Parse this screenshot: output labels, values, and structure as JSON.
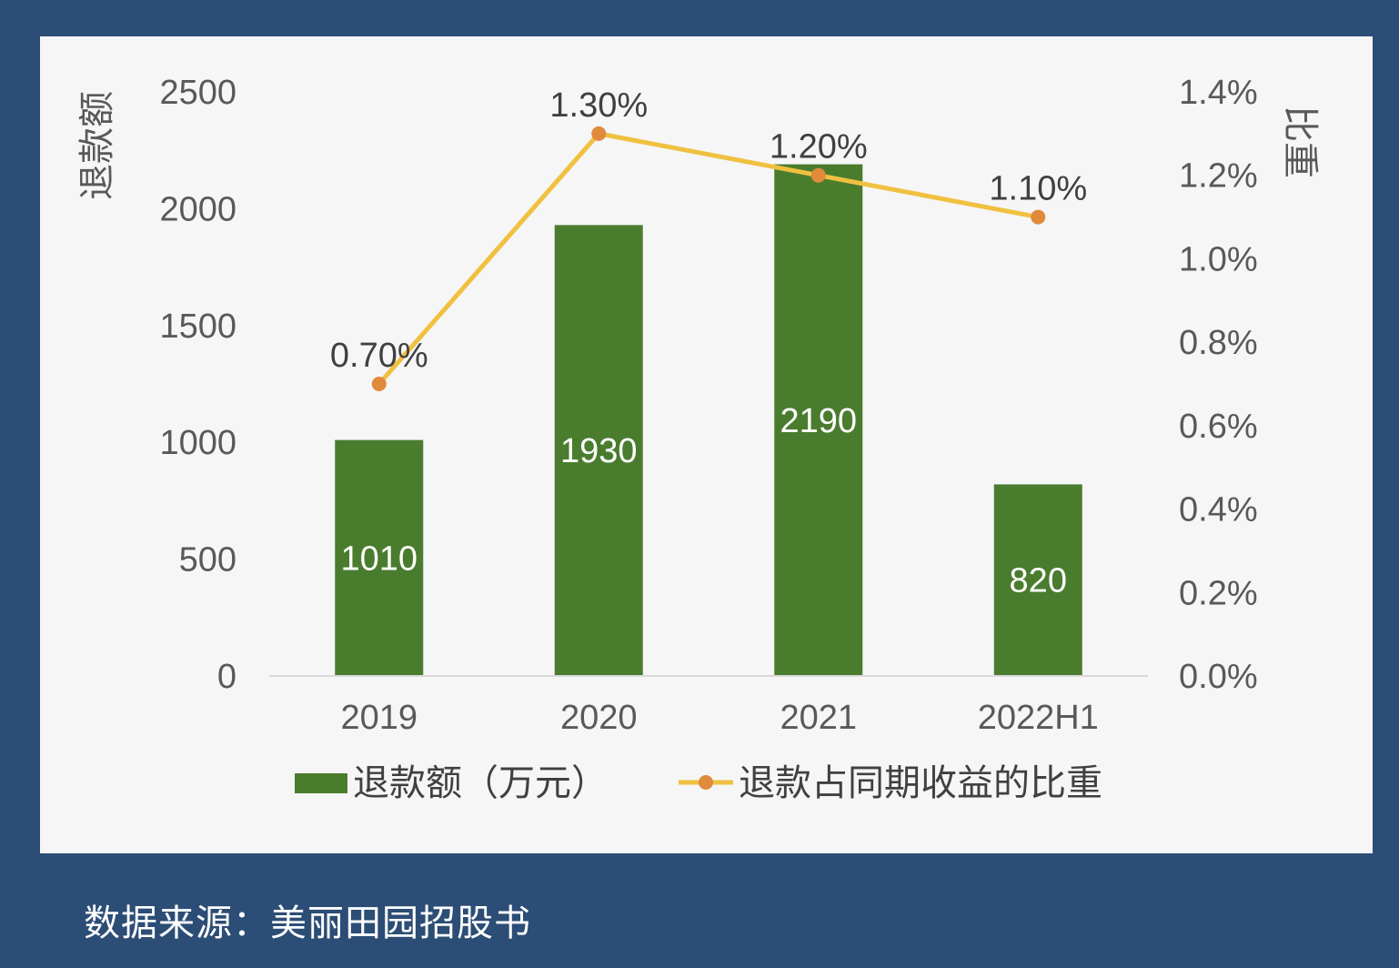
{
  "chart_data": {
    "type": "bar",
    "categories": [
      "2019",
      "2020",
      "2021",
      "2022H1"
    ],
    "series": [
      {
        "name": "退款额（万元）",
        "type": "bar",
        "axis": "left",
        "values": [
          1010,
          1930,
          2190,
          820
        ],
        "labels": [
          "1010",
          "1930",
          "2190",
          "820"
        ],
        "color": "#4a7c2e"
      },
      {
        "name": "退款占同期收益的比重",
        "type": "line",
        "axis": "right",
        "values": [
          0.7,
          1.3,
          1.2,
          1.1
        ],
        "labels": [
          "0.70%",
          "1.30%",
          "1.20%",
          "1.10%"
        ],
        "color": "#f0c040",
        "marker_color": "#e08a3c"
      }
    ],
    "ylabel": "退款额",
    "y2label": "比重",
    "ylim": [
      0,
      2500
    ],
    "y2lim": [
      0,
      1.4
    ],
    "yticks": [
      "0",
      "500",
      "1000",
      "1500",
      "2000",
      "2500"
    ],
    "y2ticks": [
      "0.0%",
      "0.2%",
      "0.4%",
      "0.6%",
      "0.8%",
      "1.0%",
      "1.2%",
      "1.4%"
    ],
    "grid": false,
    "legend": "bottom"
  },
  "source": "数据来源：美丽田园招股书"
}
